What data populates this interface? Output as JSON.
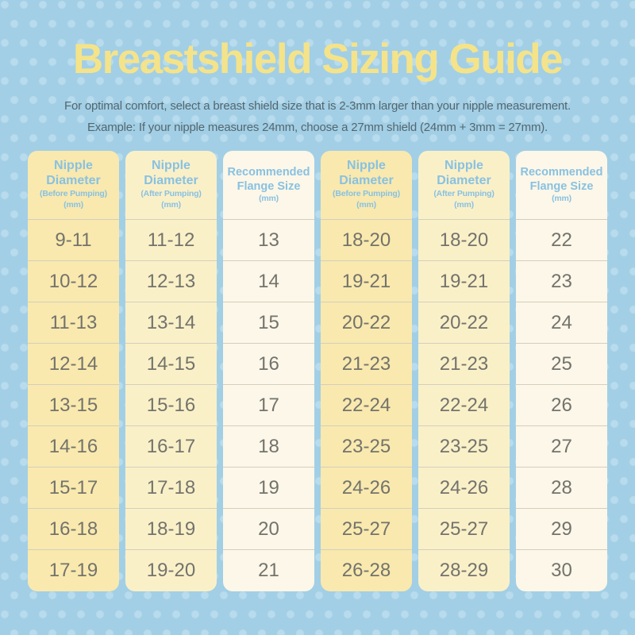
{
  "page": {
    "title": "Breastshield Sizing Guide",
    "subtitle_line1": "For optimal comfort, select a breast shield size that is 2-3mm larger than your nipple measurement.",
    "subtitle_line2": "Example: If your nipple measures 24mm, choose a 27mm shield (24mm + 3mm = 27mm)."
  },
  "colors": {
    "background": "#A2CFE5",
    "dot": "#B8DCEE",
    "title": "#F5E38A",
    "subtitle": "#54676F",
    "header_text": "#89C1E1",
    "column_before_bg": "#F9E9AE",
    "column_after_bg": "#FAF0C8",
    "column_flange_bg": "#FCF7E8",
    "cell_text": "#73736C",
    "divider": "#D3CFBD"
  },
  "table": {
    "columns": [
      {
        "id": "before-pumping-left",
        "type": "before",
        "header_main": [
          "Nipple",
          "Diameter"
        ],
        "header_sub": [
          "(Before Pumping)",
          "(mm)"
        ],
        "values": [
          "9-11",
          "10-12",
          "11-13",
          "12-14",
          "13-15",
          "14-16",
          "15-17",
          "16-18",
          "17-19"
        ]
      },
      {
        "id": "after-pumping-left",
        "type": "after",
        "header_main": [
          "Nipple",
          "Diameter"
        ],
        "header_sub": [
          "(After Pumping)",
          "(mm)"
        ],
        "values": [
          "11-12",
          "12-13",
          "13-14",
          "14-15",
          "15-16",
          "16-17",
          "17-18",
          "18-19",
          "19-20"
        ]
      },
      {
        "id": "flange-size-left",
        "type": "flange",
        "header_main": [
          "Recommended",
          "Flange Size"
        ],
        "header_sub": [
          "(mm)"
        ],
        "values": [
          "13",
          "14",
          "15",
          "16",
          "17",
          "18",
          "19",
          "20",
          "21"
        ]
      },
      {
        "id": "before-pumping-right",
        "type": "before",
        "header_main": [
          "Nipple",
          "Diameter"
        ],
        "header_sub": [
          "(Before Pumping)",
          "(mm)"
        ],
        "values": [
          "18-20",
          "19-21",
          "20-22",
          "21-23",
          "22-24",
          "23-25",
          "24-26",
          "25-27",
          "26-28"
        ]
      },
      {
        "id": "after-pumping-right",
        "type": "after",
        "header_main": [
          "Nipple",
          "Diameter"
        ],
        "header_sub": [
          "(After Pumping)",
          "(mm)"
        ],
        "values": [
          "18-20",
          "19-21",
          "20-22",
          "21-23",
          "22-24",
          "23-25",
          "24-26",
          "25-27",
          "28-29"
        ]
      },
      {
        "id": "flange-size-right",
        "type": "flange",
        "header_main": [
          "Recommended",
          "Flange Size"
        ],
        "header_sub": [
          "(mm)"
        ],
        "values": [
          "22",
          "23",
          "24",
          "25",
          "26",
          "27",
          "28",
          "29",
          "30"
        ]
      }
    ]
  }
}
